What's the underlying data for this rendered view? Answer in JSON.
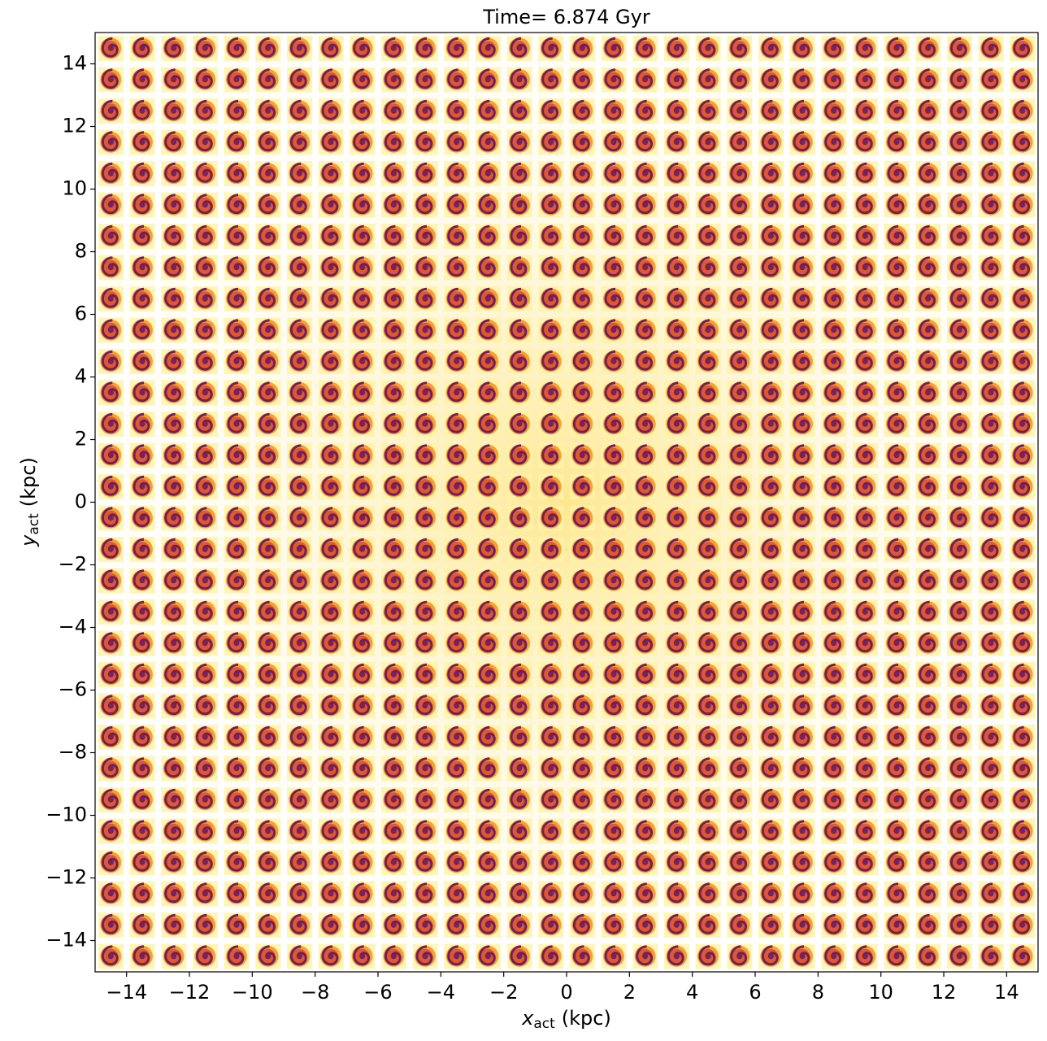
{
  "chart_data": {
    "type": "image",
    "title": "Time= 6.874 Gyr",
    "xlabel": {
      "symbol": "x",
      "subscript": "act",
      "unit": "(kpc)"
    },
    "ylabel": {
      "symbol": "y",
      "subscript": "act",
      "unit": "(kpc)"
    },
    "xlim": [
      -15,
      15
    ],
    "ylim": [
      -15,
      15
    ],
    "xticks": [
      {
        "value": -14,
        "label": "−14"
      },
      {
        "value": -12,
        "label": "−12"
      },
      {
        "value": -10,
        "label": "−10"
      },
      {
        "value": -8,
        "label": "−8"
      },
      {
        "value": -6,
        "label": "−6"
      },
      {
        "value": -4,
        "label": "−4"
      },
      {
        "value": -2,
        "label": "−2"
      },
      0,
      2,
      4,
      6,
      8,
      10,
      12,
      14
    ],
    "yticks": [
      {
        "value": -14,
        "label": "−14"
      },
      {
        "value": -12,
        "label": "−12"
      },
      {
        "value": -10,
        "label": "−10"
      },
      {
        "value": -8,
        "label": "−8"
      },
      {
        "value": -6,
        "label": "−6"
      },
      {
        "value": -4,
        "label": "−4"
      },
      {
        "value": -2,
        "label": "−2"
      },
      0,
      2,
      4,
      6,
      8,
      10,
      12,
      14
    ]
  }
}
